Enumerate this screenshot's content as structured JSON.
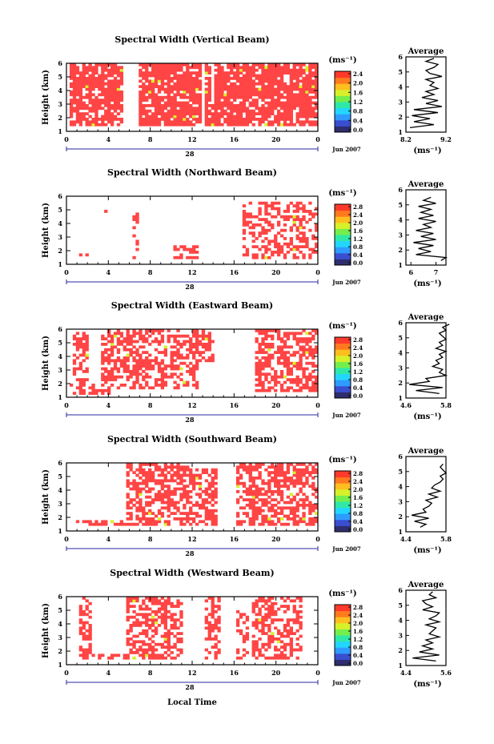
{
  "figure": {
    "xlabel": "Local Time",
    "date_label": "Jun 2007",
    "day_label": "28",
    "ylabel": "Height (km)",
    "units": "(ms⁻¹)",
    "avg_title": "Average",
    "avg_xlabel": "(ms⁻¹)",
    "x_ticks": [
      "0",
      "4",
      "8",
      "12",
      "16",
      "20",
      "0"
    ],
    "y_ticks": [
      "1",
      "2",
      "3",
      "4",
      "5",
      "6"
    ]
  },
  "colors": {
    "fill": "#ff4545",
    "palette": [
      "#2e2e6e",
      "#3a4fd0",
      "#2f9bff",
      "#23d6ff",
      "#2fe8a8",
      "#74ee4c",
      "#d7f02b",
      "#ffbe1f",
      "#ff7a1f",
      "#ff3a2a"
    ]
  },
  "chart_data": [
    {
      "type": "heatmap",
      "title": "Spectral Width (Vertical Beam)",
      "xlabel": "Local Time",
      "ylabel": "Height (km)",
      "xlim": [
        0,
        24
      ],
      "ylim": [
        1,
        6
      ],
      "colorbar": {
        "ticks": [
          "2.4",
          "2.0",
          "1.6",
          "1.2",
          "0.8",
          "0.4",
          "0.0"
        ],
        "range": [
          0,
          2.4
        ]
      },
      "coverage": [
        [
          0.1,
          5.2,
          1.3,
          6
        ],
        [
          6.8,
          12.7,
          1.3,
          6
        ],
        [
          13.2,
          13.7,
          1.3,
          6
        ],
        [
          13.5,
          14.1,
          1.3,
          2.9
        ],
        [
          13.9,
          14.2,
          1.3,
          5.9
        ],
        [
          14.4,
          17.9,
          1.3,
          6
        ],
        [
          17.8,
          24,
          1.3,
          6
        ]
      ],
      "density": 0.8,
      "average": {
        "xlim": [
          8.2,
          9.2
        ],
        "xticks": [
          "8.2",
          "9.2"
        ],
        "profile_heights": [
          1.3,
          1.5,
          1.7,
          1.9,
          2.1,
          2.3,
          2.5,
          2.7,
          2.9,
          3.1,
          3.3,
          3.5,
          3.7,
          3.9,
          4.1,
          4.3,
          4.5,
          4.7,
          4.9,
          5.1,
          5.3,
          5.5,
          5.7,
          5.9
        ],
        "profile_values": [
          8.3,
          8.9,
          8.4,
          8.8,
          8.35,
          9.0,
          8.4,
          9.1,
          8.7,
          9.0,
          8.6,
          8.9,
          8.7,
          9.0,
          8.8,
          8.9,
          8.7,
          9.1,
          8.8,
          8.7,
          8.9,
          9.0,
          8.7,
          8.9
        ]
      }
    },
    {
      "type": "heatmap",
      "title": "Spectral Width (Northward Beam)",
      "xlabel": "Local Time",
      "ylabel": "Height (km)",
      "xlim": [
        0,
        24
      ],
      "ylim": [
        1,
        6
      ],
      "colorbar": {
        "ticks": [
          "2.8",
          "2.4",
          "2.0",
          "1.6",
          "1.2",
          "0.8",
          "0.4",
          "0.0"
        ],
        "range": [
          0,
          2.8
        ]
      },
      "coverage": [
        [
          16.6,
          24,
          1.3,
          5.6
        ],
        [
          6.0,
          6.8,
          1.3,
          5.0
        ],
        [
          10.0,
          12.4,
          1.3,
          2.3
        ],
        [
          1.0,
          2.0,
          1.3,
          1.7
        ],
        [
          3.4,
          3.7,
          4.5,
          5.0
        ]
      ],
      "density": 0.45,
      "average": {
        "xlim": [
          5.8,
          7.4
        ],
        "xticks": [
          "6",
          "7"
        ],
        "profile_heights": [
          1.3,
          1.5,
          1.7,
          1.9,
          2.1,
          2.3,
          2.5,
          2.7,
          2.9,
          3.1,
          3.3,
          3.5,
          3.7,
          3.9,
          4.1,
          4.3,
          4.5,
          4.7,
          4.9,
          5.1,
          5.3,
          5.5
        ],
        "profile_values": [
          7.2,
          7.4,
          6.2,
          6.8,
          6.3,
          6.9,
          6.1,
          7.0,
          6.4,
          6.9,
          6.2,
          6.8,
          6.5,
          7.0,
          6.3,
          6.9,
          6.4,
          6.8,
          6.3,
          7.0,
          6.5,
          6.8
        ]
      }
    },
    {
      "type": "heatmap",
      "title": "Spectral Width (Eastward Beam)",
      "xlabel": "Local Time",
      "ylabel": "Height (km)",
      "xlim": [
        0,
        24
      ],
      "ylim": [
        1,
        6
      ],
      "colorbar": {
        "ticks": [
          "2.8",
          "2.4",
          "2.0",
          "1.6",
          "1.2",
          "0.8",
          "0.4",
          "0.0"
        ],
        "range": [
          0,
          2.8
        ]
      },
      "coverage": [
        [
          0.1,
          4.3,
          1.2,
          1.8
        ],
        [
          3.0,
          11.0,
          1.5,
          6
        ],
        [
          11.0,
          12.6,
          1.5,
          5.6
        ],
        [
          0.6,
          2.0,
          1.2,
          5.7
        ],
        [
          12.0,
          14.0,
          3.5,
          5.9
        ],
        [
          17.8,
          24,
          1.3,
          6
        ]
      ],
      "density": 0.55,
      "average": {
        "xlim": [
          4.6,
          5.8
        ],
        "xticks": [
          "4.6",
          "5.8"
        ],
        "profile_heights": [
          1.3,
          1.5,
          1.7,
          1.9,
          2.1,
          2.3,
          2.5,
          2.7,
          2.9,
          3.1,
          3.3,
          3.5,
          3.7,
          3.9,
          4.1,
          4.3,
          4.5,
          4.7,
          4.9,
          5.1,
          5.3,
          5.5,
          5.7,
          5.9
        ],
        "profile_values": [
          5.6,
          4.9,
          5.7,
          4.7,
          5.3,
          5.2,
          5.8,
          5.6,
          5.7,
          5.4,
          5.6,
          5.5,
          5.7,
          5.6,
          5.8,
          5.5,
          5.7,
          5.6,
          5.8,
          5.7,
          5.6,
          5.8,
          5.7,
          5.9
        ]
      }
    },
    {
      "type": "heatmap",
      "title": "Spectral Width (Southward Beam)",
      "xlabel": "Local Time",
      "ylabel": "Height (km)",
      "xlim": [
        0,
        24
      ],
      "ylim": [
        1,
        6
      ],
      "colorbar": {
        "ticks": [
          "2.8",
          "2.4",
          "2.0",
          "1.6",
          "1.2",
          "0.8",
          "0.4",
          "0.0"
        ],
        "range": [
          0,
          2.8
        ]
      },
      "coverage": [
        [
          0.6,
          11.6,
          1.3,
          1.7
        ],
        [
          5.4,
          11.6,
          1.3,
          6
        ],
        [
          11.4,
          14.2,
          1.3,
          5.5
        ],
        [
          16.2,
          24,
          1.3,
          6
        ]
      ],
      "density": 0.6,
      "average": {
        "xlim": [
          4.4,
          5.8
        ],
        "xticks": [
          "4.4",
          "5.8"
        ],
        "profile_heights": [
          1.3,
          1.5,
          1.7,
          1.9,
          2.1,
          2.3,
          2.5,
          2.7,
          2.9,
          3.1,
          3.3,
          3.5,
          3.7,
          3.9,
          4.1,
          4.3,
          4.5,
          4.7,
          4.9,
          5.1,
          5.3,
          5.5
        ],
        "profile_values": [
          4.9,
          5.1,
          4.7,
          5.2,
          4.6,
          5.1,
          5.0,
          5.2,
          5.3,
          5.1,
          5.5,
          5.2,
          5.6,
          5.3,
          5.4,
          5.6,
          5.7,
          5.6,
          5.8,
          5.7,
          5.6,
          5.7
        ]
      }
    },
    {
      "type": "heatmap",
      "title": "Spectral Width (Westward Beam)",
      "xlabel": "Local Time",
      "ylabel": "Height (km)",
      "xlim": [
        0,
        24
      ],
      "ylim": [
        1,
        6
      ],
      "colorbar": {
        "ticks": [
          "2.8",
          "2.4",
          "2.0",
          "1.6",
          "1.2",
          "0.8",
          "0.4",
          "0.0"
        ],
        "range": [
          0,
          2.8
        ]
      },
      "coverage": [
        [
          1.0,
          2.2,
          1.3,
          6
        ],
        [
          2.0,
          6.8,
          1.3,
          1.7
        ],
        [
          5.4,
          11.0,
          1.3,
          6
        ],
        [
          13.0,
          14.5,
          1.3,
          6
        ],
        [
          16.0,
          17.4,
          1.3,
          5.0
        ],
        [
          17.6,
          22.4,
          1.3,
          6
        ]
      ],
      "density": 0.5,
      "average": {
        "xlim": [
          4.4,
          5.6
        ],
        "xticks": [
          "4.4",
          "5.6"
        ],
        "profile_heights": [
          1.3,
          1.5,
          1.7,
          1.9,
          2.1,
          2.3,
          2.5,
          2.7,
          2.9,
          3.1,
          3.3,
          3.5,
          3.7,
          3.9,
          4.1,
          4.3,
          4.5,
          4.7,
          4.9,
          5.1,
          5.3,
          5.5,
          5.7,
          5.9
        ],
        "profile_values": [
          5.3,
          4.6,
          5.4,
          4.8,
          5.2,
          4.9,
          5.2,
          5.0,
          5.4,
          5.1,
          5.2,
          5.3,
          5.0,
          5.4,
          5.1,
          5.3,
          5.4,
          4.9,
          5.2,
          5.0,
          4.9,
          5.3,
          5.1,
          5.2
        ]
      }
    }
  ]
}
